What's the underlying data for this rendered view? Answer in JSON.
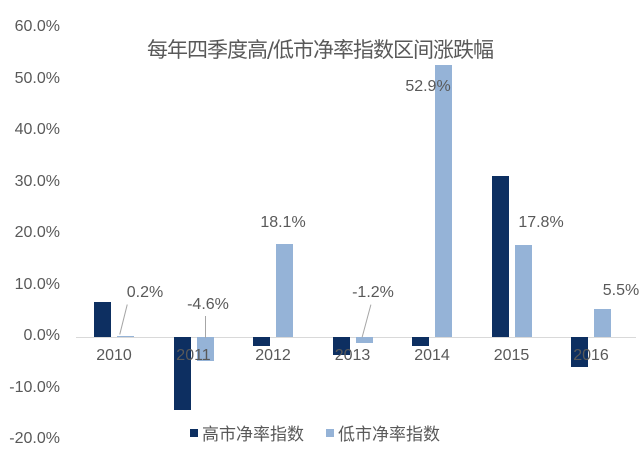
{
  "chart_data": {
    "type": "bar",
    "title": "每年四季度高/低市净率指数区间涨跌幅",
    "categories": [
      "2010",
      "2011",
      "2012",
      "2013",
      "2014",
      "2015",
      "2016"
    ],
    "series": [
      {
        "name": "高市净率指数",
        "color": "#0d2f61",
        "values": [
          6.8,
          -14.2,
          -1.8,
          -3.5,
          -1.8,
          31.3,
          -5.8
        ]
      },
      {
        "name": "低市净率指数",
        "color": "#95b3d7",
        "values": [
          0.2,
          -4.6,
          18.1,
          -1.2,
          52.9,
          17.8,
          5.5
        ]
      }
    ],
    "data_labels": {
      "series": "低市净率指数",
      "labels": [
        "0.2%",
        "-4.6%",
        "18.1%",
        "-1.2%",
        "52.9%",
        "17.8%",
        "5.5%"
      ]
    },
    "yticks": [
      "60.0%",
      "50.0%",
      "40.0%",
      "30.0%",
      "20.0%",
      "10.0%",
      "0.0%",
      "-10.0%",
      "-20.0%"
    ],
    "ylim": [
      -20,
      60
    ],
    "xlabel": "",
    "ylabel": "",
    "grid": false,
    "legend_position": "bottom"
  }
}
